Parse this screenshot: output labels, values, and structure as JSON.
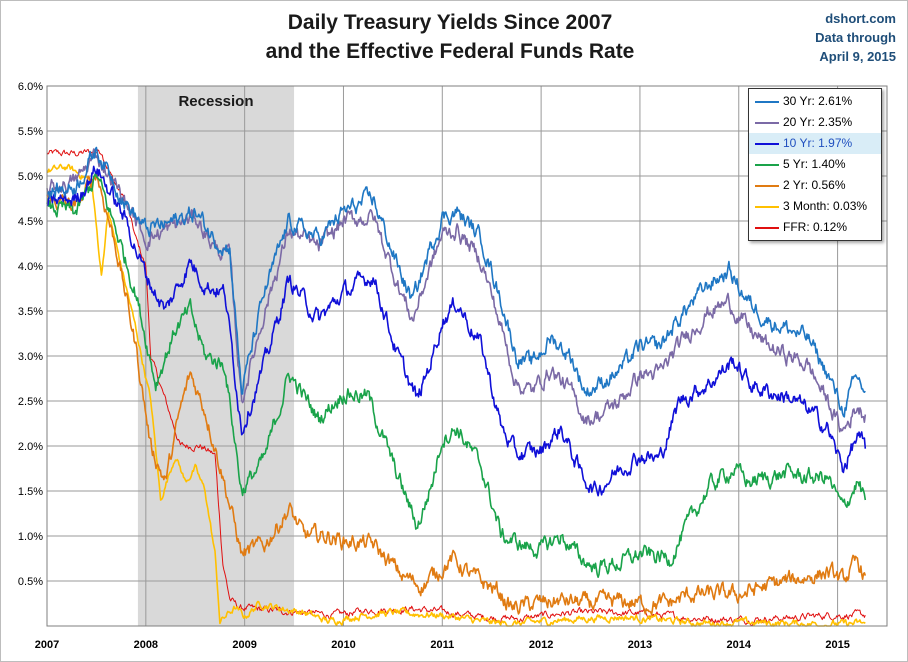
{
  "title": {
    "line1": "Daily Treasury Yields Since 2007",
    "line2": "and the Effective Federal Funds Rate"
  },
  "source": {
    "site": "dshort.com",
    "line2": "Data through",
    "line3": "April 9, 2015"
  },
  "legend": [
    {
      "label": "30 Yr: 2.61%",
      "color": "#1f77c4"
    },
    {
      "label": "20 Yr: 2.35%",
      "color": "#7b6aa6"
    },
    {
      "label": "10 Yr: 1.97%",
      "color": "#1010d8",
      "highlight": true,
      "text_color": "#1f4fbf"
    },
    {
      "label": "5 Yr: 1.40%",
      "color": "#1aa34a"
    },
    {
      "label": "2 Yr: 0.56%",
      "color": "#e07b12"
    },
    {
      "label": "3 Month: 0.03%",
      "color": "#ffc000"
    },
    {
      "label": "FFR: 0.12%",
      "color": "#e01010"
    }
  ],
  "chart_data": {
    "type": "line",
    "ylim": [
      0,
      6
    ],
    "xlim": [
      2007.0,
      2015.5
    ],
    "yticks": [
      "6.0%",
      "5.5%",
      "5.0%",
      "4.5%",
      "4.0%",
      "3.5%",
      "3.0%",
      "2.5%",
      "2.0%",
      "1.5%",
      "1.0%",
      "0.5%"
    ],
    "xticks": [
      "2007",
      "2008",
      "2009",
      "2010",
      "2011",
      "2012",
      "2013",
      "2014",
      "2015"
    ],
    "grid": true,
    "legend_position": "top-right",
    "recession": {
      "label": "Recession",
      "start": 2007.92,
      "end": 2009.5
    },
    "series": [
      {
        "name": "30 Yr",
        "color": "#1f77c4",
        "points": [
          [
            2007.0,
            4.8
          ],
          [
            2007.3,
            4.9
          ],
          [
            2007.5,
            5.3
          ],
          [
            2007.8,
            4.7
          ],
          [
            2008.0,
            4.4
          ],
          [
            2008.3,
            4.5
          ],
          [
            2008.5,
            4.6
          ],
          [
            2008.7,
            4.3
          ],
          [
            2008.85,
            4.2
          ],
          [
            2008.97,
            2.6
          ],
          [
            2009.2,
            3.7
          ],
          [
            2009.45,
            4.5
          ],
          [
            2009.75,
            4.3
          ],
          [
            2010.0,
            4.6
          ],
          [
            2010.3,
            4.75
          ],
          [
            2010.55,
            4.0
          ],
          [
            2010.7,
            3.6
          ],
          [
            2010.85,
            4.1
          ],
          [
            2011.0,
            4.55
          ],
          [
            2011.15,
            4.6
          ],
          [
            2011.4,
            4.3
          ],
          [
            2011.6,
            3.6
          ],
          [
            2011.75,
            3.0
          ],
          [
            2011.9,
            2.9
          ],
          [
            2012.1,
            3.2
          ],
          [
            2012.3,
            3.0
          ],
          [
            2012.45,
            2.6
          ],
          [
            2012.6,
            2.7
          ],
          [
            2012.8,
            2.85
          ],
          [
            2013.0,
            3.1
          ],
          [
            2013.2,
            3.1
          ],
          [
            2013.45,
            3.5
          ],
          [
            2013.7,
            3.8
          ],
          [
            2013.9,
            3.95
          ],
          [
            2014.1,
            3.6
          ],
          [
            2014.3,
            3.4
          ],
          [
            2014.5,
            3.3
          ],
          [
            2014.7,
            3.2
          ],
          [
            2014.9,
            2.8
          ],
          [
            2015.05,
            2.4
          ],
          [
            2015.2,
            2.75
          ],
          [
            2015.28,
            2.61
          ]
        ]
      },
      {
        "name": "20 Yr",
        "color": "#7b6aa6",
        "points": [
          [
            2007.0,
            4.85
          ],
          [
            2007.3,
            4.95
          ],
          [
            2007.5,
            5.25
          ],
          [
            2007.8,
            4.7
          ],
          [
            2008.0,
            4.3
          ],
          [
            2008.3,
            4.45
          ],
          [
            2008.5,
            4.55
          ],
          [
            2008.7,
            4.2
          ],
          [
            2008.85,
            4.1
          ],
          [
            2008.97,
            2.5
          ],
          [
            2009.2,
            3.5
          ],
          [
            2009.45,
            4.4
          ],
          [
            2009.75,
            4.2
          ],
          [
            2010.0,
            4.5
          ],
          [
            2010.3,
            4.55
          ],
          [
            2010.55,
            3.8
          ],
          [
            2010.7,
            3.4
          ],
          [
            2010.85,
            3.9
          ],
          [
            2011.0,
            4.35
          ],
          [
            2011.15,
            4.4
          ],
          [
            2011.4,
            4.05
          ],
          [
            2011.6,
            3.3
          ],
          [
            2011.75,
            2.7
          ],
          [
            2011.9,
            2.6
          ],
          [
            2012.1,
            2.85
          ],
          [
            2012.3,
            2.6
          ],
          [
            2012.45,
            2.3
          ],
          [
            2012.6,
            2.35
          ],
          [
            2012.8,
            2.5
          ],
          [
            2013.0,
            2.8
          ],
          [
            2013.2,
            2.8
          ],
          [
            2013.45,
            3.2
          ],
          [
            2013.7,
            3.5
          ],
          [
            2013.9,
            3.6
          ],
          [
            2014.1,
            3.3
          ],
          [
            2014.3,
            3.1
          ],
          [
            2014.5,
            3.0
          ],
          [
            2014.7,
            2.9
          ],
          [
            2014.9,
            2.5
          ],
          [
            2015.05,
            2.15
          ],
          [
            2015.2,
            2.45
          ],
          [
            2015.28,
            2.35
          ]
        ]
      },
      {
        "name": "10 Yr",
        "color": "#1010d8",
        "points": [
          [
            2007.0,
            4.7
          ],
          [
            2007.3,
            4.75
          ],
          [
            2007.5,
            5.1
          ],
          [
            2007.8,
            4.5
          ],
          [
            2008.0,
            3.9
          ],
          [
            2008.2,
            3.5
          ],
          [
            2008.45,
            4.05
          ],
          [
            2008.6,
            3.8
          ],
          [
            2008.8,
            3.7
          ],
          [
            2008.97,
            2.2
          ],
          [
            2009.2,
            2.9
          ],
          [
            2009.45,
            3.85
          ],
          [
            2009.75,
            3.4
          ],
          [
            2010.0,
            3.7
          ],
          [
            2010.3,
            3.9
          ],
          [
            2010.55,
            3.0
          ],
          [
            2010.75,
            2.5
          ],
          [
            2010.9,
            3.0
          ],
          [
            2011.0,
            3.4
          ],
          [
            2011.15,
            3.6
          ],
          [
            2011.4,
            3.1
          ],
          [
            2011.6,
            2.2
          ],
          [
            2011.75,
            1.9
          ],
          [
            2012.0,
            1.95
          ],
          [
            2012.2,
            2.2
          ],
          [
            2012.4,
            1.7
          ],
          [
            2012.55,
            1.5
          ],
          [
            2012.8,
            1.75
          ],
          [
            2013.0,
            1.9
          ],
          [
            2013.2,
            1.85
          ],
          [
            2013.4,
            2.5
          ],
          [
            2013.7,
            2.7
          ],
          [
            2013.95,
            2.95
          ],
          [
            2014.1,
            2.7
          ],
          [
            2014.3,
            2.6
          ],
          [
            2014.5,
            2.55
          ],
          [
            2014.7,
            2.4
          ],
          [
            2014.9,
            2.2
          ],
          [
            2015.05,
            1.75
          ],
          [
            2015.2,
            2.1
          ],
          [
            2015.28,
            1.97
          ]
        ]
      },
      {
        "name": "5 Yr",
        "color": "#1aa34a",
        "points": [
          [
            2007.0,
            4.65
          ],
          [
            2007.3,
            4.6
          ],
          [
            2007.5,
            5.0
          ],
          [
            2007.7,
            4.4
          ],
          [
            2007.9,
            3.7
          ],
          [
            2008.1,
            2.7
          ],
          [
            2008.3,
            3.3
          ],
          [
            2008.45,
            3.5
          ],
          [
            2008.6,
            3.0
          ],
          [
            2008.8,
            2.9
          ],
          [
            2008.97,
            1.5
          ],
          [
            2009.2,
            1.85
          ],
          [
            2009.45,
            2.8
          ],
          [
            2009.75,
            2.3
          ],
          [
            2010.0,
            2.6
          ],
          [
            2010.25,
            2.55
          ],
          [
            2010.5,
            1.8
          ],
          [
            2010.75,
            1.1
          ],
          [
            2010.9,
            1.6
          ],
          [
            2011.0,
            2.1
          ],
          [
            2011.15,
            2.2
          ],
          [
            2011.4,
            1.75
          ],
          [
            2011.6,
            1.0
          ],
          [
            2011.8,
            0.9
          ],
          [
            2012.0,
            0.85
          ],
          [
            2012.2,
            1.0
          ],
          [
            2012.4,
            0.75
          ],
          [
            2012.55,
            0.65
          ],
          [
            2012.8,
            0.7
          ],
          [
            2013.0,
            0.8
          ],
          [
            2013.3,
            0.75
          ],
          [
            2013.45,
            1.05
          ],
          [
            2013.7,
            1.55
          ],
          [
            2013.95,
            1.75
          ],
          [
            2014.1,
            1.6
          ],
          [
            2014.3,
            1.65
          ],
          [
            2014.5,
            1.7
          ],
          [
            2014.7,
            1.65
          ],
          [
            2014.9,
            1.65
          ],
          [
            2015.05,
            1.3
          ],
          [
            2015.2,
            1.6
          ],
          [
            2015.28,
            1.4
          ]
        ]
      },
      {
        "name": "2 Yr",
        "color": "#e07b12",
        "points": [
          [
            2007.0,
            4.75
          ],
          [
            2007.3,
            4.65
          ],
          [
            2007.5,
            5.05
          ],
          [
            2007.7,
            4.2
          ],
          [
            2007.9,
            3.1
          ],
          [
            2008.05,
            2.0
          ],
          [
            2008.2,
            1.6
          ],
          [
            2008.35,
            2.4
          ],
          [
            2008.45,
            2.8
          ],
          [
            2008.6,
            2.4
          ],
          [
            2008.75,
            1.8
          ],
          [
            2008.97,
            0.8
          ],
          [
            2009.2,
            0.9
          ],
          [
            2009.45,
            1.3
          ],
          [
            2009.6,
            1.0
          ],
          [
            2009.85,
            1.0
          ],
          [
            2010.0,
            0.95
          ],
          [
            2010.3,
            0.9
          ],
          [
            2010.6,
            0.55
          ],
          [
            2010.8,
            0.45
          ],
          [
            2010.95,
            0.6
          ],
          [
            2011.1,
            0.75
          ],
          [
            2011.3,
            0.55
          ],
          [
            2011.55,
            0.4
          ],
          [
            2011.7,
            0.2
          ],
          [
            2011.95,
            0.25
          ],
          [
            2012.2,
            0.28
          ],
          [
            2012.5,
            0.25
          ],
          [
            2012.8,
            0.27
          ],
          [
            2013.0,
            0.25
          ],
          [
            2013.3,
            0.25
          ],
          [
            2013.5,
            0.35
          ],
          [
            2013.75,
            0.35
          ],
          [
            2014.0,
            0.35
          ],
          [
            2014.3,
            0.45
          ],
          [
            2014.5,
            0.5
          ],
          [
            2014.7,
            0.55
          ],
          [
            2014.9,
            0.6
          ],
          [
            2015.05,
            0.5
          ],
          [
            2015.2,
            0.7
          ],
          [
            2015.28,
            0.56
          ]
        ]
      },
      {
        "name": "3 Month",
        "color": "#ffc000",
        "points": [
          [
            2007.0,
            5.05
          ],
          [
            2007.2,
            5.1
          ],
          [
            2007.45,
            4.95
          ],
          [
            2007.55,
            3.9
          ],
          [
            2007.62,
            4.6
          ],
          [
            2007.75,
            4.0
          ],
          [
            2007.9,
            3.3
          ],
          [
            2008.05,
            2.5
          ],
          [
            2008.15,
            1.4
          ],
          [
            2008.3,
            1.9
          ],
          [
            2008.4,
            1.6
          ],
          [
            2008.5,
            1.75
          ],
          [
            2008.6,
            1.5
          ],
          [
            2008.7,
            0.8
          ],
          [
            2008.75,
            0.05
          ],
          [
            2008.9,
            0.2
          ],
          [
            2009.0,
            0.1
          ],
          [
            2009.15,
            0.25
          ],
          [
            2009.35,
            0.2
          ],
          [
            2009.6,
            0.15
          ],
          [
            2009.85,
            0.05
          ],
          [
            2010.2,
            0.12
          ],
          [
            2010.5,
            0.15
          ],
          [
            2010.8,
            0.13
          ],
          [
            2011.0,
            0.12
          ],
          [
            2011.4,
            0.05
          ],
          [
            2011.7,
            0.02
          ],
          [
            2012.0,
            0.05
          ],
          [
            2012.4,
            0.08
          ],
          [
            2012.8,
            0.1
          ],
          [
            2013.2,
            0.07
          ],
          [
            2013.6,
            0.03
          ],
          [
            2014.0,
            0.04
          ],
          [
            2014.5,
            0.03
          ],
          [
            2015.0,
            0.02
          ],
          [
            2015.28,
            0.03
          ]
        ]
      },
      {
        "name": "FFR",
        "color": "#e01010",
        "points": [
          [
            2007.0,
            5.25
          ],
          [
            2007.3,
            5.25
          ],
          [
            2007.55,
            5.28
          ],
          [
            2007.65,
            5.0
          ],
          [
            2007.8,
            4.7
          ],
          [
            2007.9,
            4.3
          ],
          [
            2008.0,
            4.0
          ],
          [
            2008.05,
            3.0
          ],
          [
            2008.2,
            2.5
          ],
          [
            2008.35,
            2.0
          ],
          [
            2008.55,
            2.0
          ],
          [
            2008.7,
            1.9
          ],
          [
            2008.78,
            0.7
          ],
          [
            2008.85,
            0.3
          ],
          [
            2008.95,
            0.2
          ],
          [
            2009.2,
            0.18
          ],
          [
            2009.6,
            0.15
          ],
          [
            2009.9,
            0.12
          ],
          [
            2010.3,
            0.18
          ],
          [
            2010.7,
            0.19
          ],
          [
            2011.0,
            0.16
          ],
          [
            2011.4,
            0.1
          ],
          [
            2011.8,
            0.08
          ],
          [
            2012.2,
            0.14
          ],
          [
            2012.6,
            0.15
          ],
          [
            2013.0,
            0.14
          ],
          [
            2013.5,
            0.09
          ],
          [
            2014.0,
            0.07
          ],
          [
            2014.5,
            0.09
          ],
          [
            2014.9,
            0.12
          ],
          [
            2015.28,
            0.12
          ]
        ]
      }
    ]
  }
}
